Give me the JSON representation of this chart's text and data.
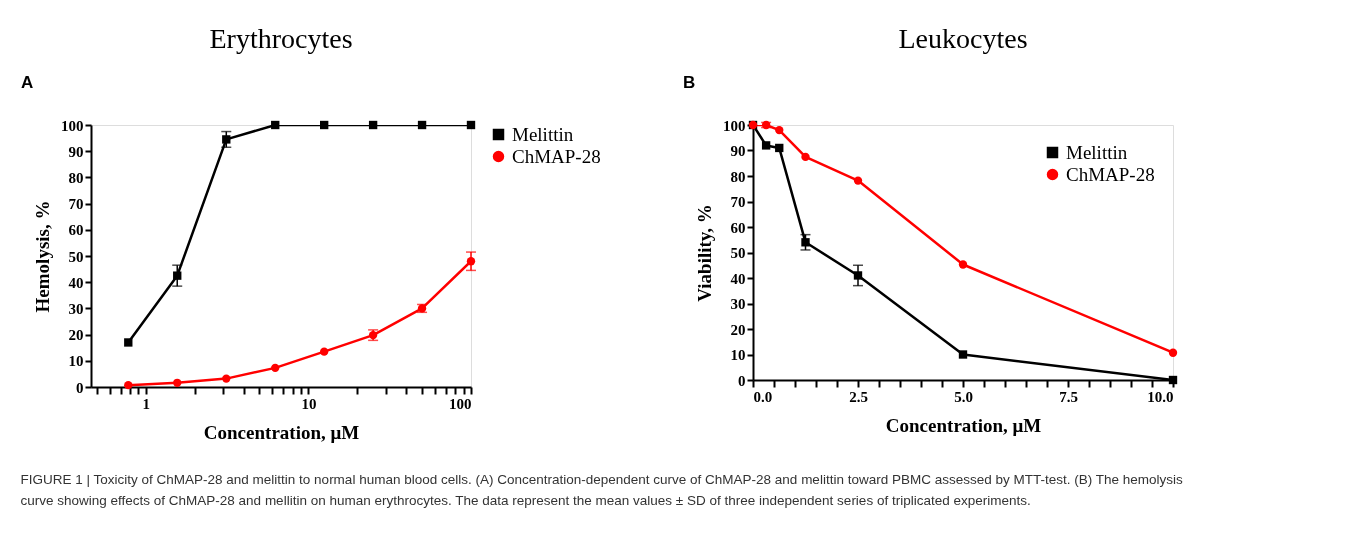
{
  "chart_data": [
    {
      "type": "line",
      "title": "Erythrocytes",
      "xlabel": "Concentration, μM",
      "ylabel": "Hemolysis, %",
      "log": "x",
      "xlim": [
        0.46,
        100
      ],
      "xticks": [
        {
          "value": 0.5,
          "label": null
        },
        {
          "value": 0.6,
          "label": null
        },
        {
          "value": 0.7,
          "label": null
        },
        {
          "value": 0.8,
          "label": null
        },
        {
          "value": 0.9,
          "label": null
        },
        1,
        {
          "value": 2,
          "label": null
        },
        {
          "value": 3,
          "label": null
        },
        {
          "value": 4,
          "label": null
        },
        {
          "value": 5,
          "label": null
        },
        {
          "value": 6,
          "label": null
        },
        {
          "value": 7,
          "label": null
        },
        {
          "value": 8,
          "label": null
        },
        {
          "value": 9,
          "label": null
        },
        10,
        {
          "value": 20,
          "label": null
        },
        {
          "value": 30,
          "label": null
        },
        {
          "value": 40,
          "label": null
        },
        {
          "value": 50,
          "label": null
        },
        {
          "value": 60,
          "label": null
        },
        {
          "value": 70,
          "label": null
        },
        {
          "value": 80,
          "label": null
        },
        {
          "value": 90,
          "label": null
        },
        100
      ],
      "ylim": [
        0,
        100
      ],
      "yticks": [
        0,
        10,
        20,
        30,
        40,
        50,
        60,
        70,
        80,
        90,
        100
      ],
      "grid": false,
      "legend": "right",
      "series": [
        {
          "name": "Melittin",
          "color": "#000000",
          "marker": "square",
          "x": [
            0.78,
            1.56,
            3.125,
            6.25,
            12.5,
            25,
            50,
            100
          ],
          "values": [
            17,
            42.5,
            94.5,
            100,
            100,
            100,
            100,
            100
          ],
          "errors": [
            null,
            4,
            3,
            null,
            null,
            null,
            null,
            null
          ]
        },
        {
          "name": "ChMAP-28",
          "color": "#ff0000",
          "marker": "circle",
          "x": [
            0.78,
            1.56,
            3.125,
            6.25,
            12.5,
            25,
            50,
            100
          ],
          "values": [
            0.7,
            1.6,
            3.2,
            7.3,
            13.5,
            19.8,
            30,
            48
          ],
          "errors": [
            null,
            null,
            null,
            null,
            null,
            2,
            1.5,
            3.5
          ]
        }
      ],
      "annotations": [
        "A",
        "FIGURE 1 | Toxicity of ChMAP-28 and melittin to normal human blood cells. (A) Concentration-dependent curve of ChMAP-28 and melittin toward PBMC assessed by MTT-test. (B) The hemolysis curve showing effects of ChMAP-28 and mellitin on human erythrocytes. The data represent the mean values ± SD of three independent series of triplicated experiments."
      ]
    },
    {
      "type": "line",
      "title": "Leukocytes",
      "xlabel": "Concentration, μM",
      "ylabel": "Viability, %",
      "xlim": [
        0,
        10
      ],
      "xticks": [
        {
          "value": 0,
          "label": "0.0"
        },
        {
          "value": 0.5,
          "label": null
        },
        {
          "value": 1,
          "label": null
        },
        {
          "value": 1.5,
          "label": null
        },
        {
          "value": 2,
          "label": null
        },
        {
          "value": 2.5,
          "label": "2.5"
        },
        {
          "value": 3,
          "label": null
        },
        {
          "value": 3.5,
          "label": null
        },
        {
          "value": 4,
          "label": null
        },
        {
          "value": 4.5,
          "label": null
        },
        {
          "value": 5,
          "label": "5.0"
        },
        {
          "value": 5.5,
          "label": null
        },
        {
          "value": 6,
          "label": null
        },
        {
          "value": 6.5,
          "label": null
        },
        {
          "value": 7,
          "label": null
        },
        {
          "value": 7.5,
          "label": "7.5"
        },
        {
          "value": 8,
          "label": null
        },
        {
          "value": 8.5,
          "label": null
        },
        {
          "value": 9,
          "label": null
        },
        {
          "value": 9.5,
          "label": null
        },
        {
          "value": 10,
          "label": "10.0"
        }
      ],
      "ylim": [
        0,
        100
      ],
      "yticks": [
        0,
        10,
        20,
        30,
        40,
        50,
        60,
        70,
        80,
        90,
        100
      ],
      "grid": false,
      "legend": "top right",
      "series": [
        {
          "name": "Melittin",
          "color": "#000000",
          "marker": "square",
          "x": [
            0,
            0.3125,
            0.625,
            1.25,
            2.5,
            5,
            10
          ],
          "values": [
            100,
            92,
            91,
            54,
            41,
            10,
            0
          ],
          "errors": [
            null,
            null,
            null,
            3,
            4,
            null,
            null
          ]
        },
        {
          "name": "ChMAP-28",
          "color": "#ff0000",
          "marker": "circle",
          "x": [
            0,
            0.3125,
            0.625,
            1.25,
            2.5,
            5,
            10
          ],
          "values": [
            100,
            100,
            98,
            87.5,
            78.2,
            45.3,
            10.7
          ],
          "errors": [
            null,
            1,
            null,
            null,
            null,
            null,
            null
          ]
        }
      ],
      "annotations": [
        "B"
      ]
    }
  ]
}
